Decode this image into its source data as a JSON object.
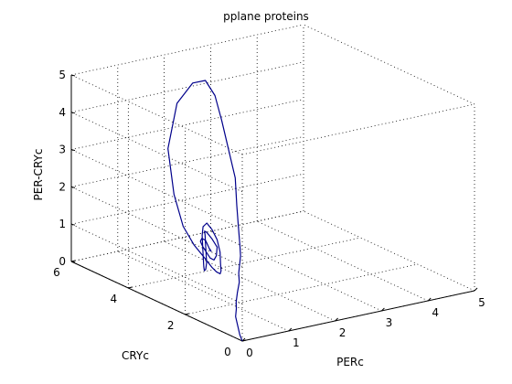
{
  "chart_data": {
    "type": "line",
    "projection": "3d",
    "title": "pplane proteins",
    "xlabel": "PERc",
    "ylabel": "CRYc",
    "zlabel": "PER-CRYc",
    "xlim": [
      0,
      5
    ],
    "ylim": [
      0,
      6
    ],
    "zlim": [
      0,
      5
    ],
    "xticks": [
      "0",
      "1",
      "2",
      "3",
      "4",
      "5"
    ],
    "yticks": [
      "0",
      "2",
      "4",
      "6"
    ],
    "zticks": [
      "0",
      "1",
      "2",
      "3",
      "4",
      "5"
    ],
    "grid": true,
    "box": "full",
    "colors": {
      "series": "#00008b",
      "axes": "#000000",
      "background": "#ffffff"
    },
    "series": [
      {
        "x": [
          0,
          0.1,
          0.3,
          0.5,
          0.7,
          0.85,
          1.0,
          1.1,
          1.15,
          1.2,
          1.25,
          1.3,
          1.45,
          1.6,
          1.75,
          1.85,
          1.95,
          2.05,
          2.15,
          2.0,
          1.6,
          1.1,
          0.8,
          0.75,
          0.8,
          0.9,
          1.0,
          1.1,
          1.15,
          1.2,
          1.25,
          1.3,
          1.3,
          1.25,
          1.2,
          1.15,
          1.1,
          1.05,
          1.0,
          0.95,
          0.9,
          0.9,
          0.95,
          1.0,
          1.05,
          1.1,
          1.15,
          1.2,
          1.25,
          1.3,
          1.25,
          1.2,
          1.15,
          1.1,
          1.05,
          1.0,
          1.0,
          1.05,
          1.1,
          1.15,
          1.2,
          1.2
        ],
        "y": [
          0,
          0.25,
          0.65,
          1.05,
          1.35,
          1.6,
          1.8,
          1.9,
          2.0,
          2.05,
          2.1,
          2.2,
          2.5,
          2.8,
          3.1,
          3.5,
          3.9,
          4.3,
          4.8,
          5.0,
          4.9,
          4.4,
          3.7,
          3.3,
          3.0,
          2.8,
          2.7,
          2.7,
          2.65,
          2.7,
          2.8,
          2.9,
          3.0,
          3.1,
          3.2,
          3.25,
          3.2,
          3.1,
          3.0,
          2.9,
          2.8,
          2.75,
          2.8,
          2.9,
          3.0,
          3.1,
          3.2,
          3.2,
          3.1,
          3.0,
          2.95,
          2.95,
          3.0,
          3.05,
          3.1,
          3.1,
          3.05,
          3.0,
          3.0,
          3.0,
          3.05,
          3.1
        ],
        "z": [
          0,
          0.05,
          0.1,
          0.15,
          0.2,
          0.25,
          0.4,
          0.6,
          0.8,
          1.0,
          1.2,
          1.4,
          1.8,
          2.2,
          2.8,
          3.4,
          4.0,
          4.5,
          4.7,
          4.6,
          4.2,
          3.3,
          2.4,
          1.7,
          1.3,
          1.0,
          0.75,
          0.6,
          0.55,
          0.6,
          0.75,
          1.0,
          1.3,
          1.55,
          1.7,
          1.6,
          1.4,
          1.15,
          0.9,
          0.7,
          0.65,
          0.7,
          0.85,
          1.05,
          1.25,
          1.45,
          1.5,
          1.45,
          1.3,
          1.1,
          0.9,
          0.8,
          0.85,
          1.0,
          1.15,
          1.3,
          1.4,
          1.35,
          1.2,
          1.05,
          1.0,
          1.05
        ]
      }
    ]
  }
}
